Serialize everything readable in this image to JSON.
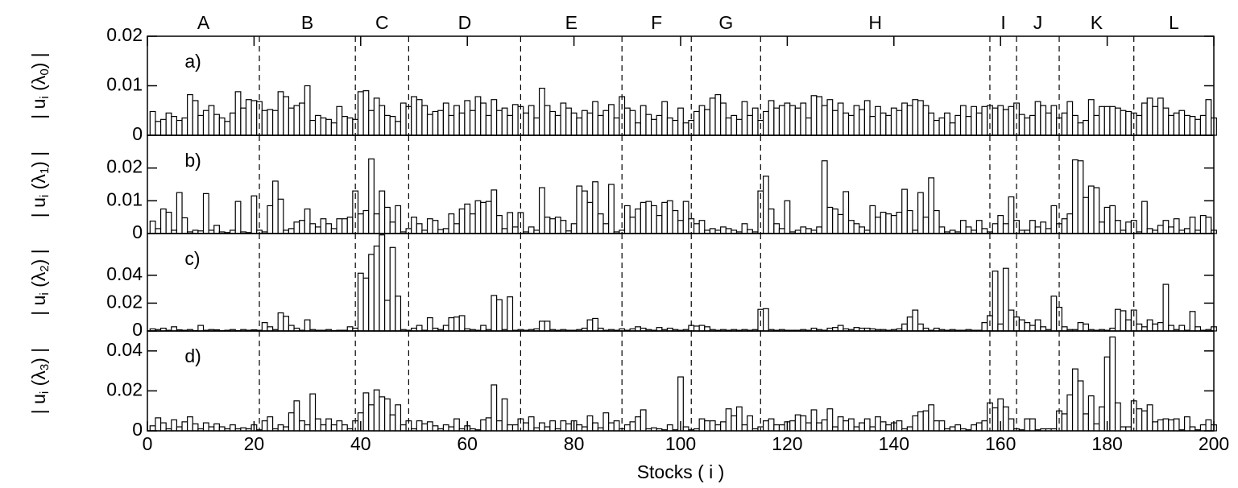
{
  "chart_data": {
    "type": "bar",
    "xlabel": "Stocks ( i )",
    "xlim": [
      0,
      200
    ],
    "xticks": [
      0,
      20,
      40,
      60,
      80,
      100,
      120,
      140,
      160,
      180,
      200
    ],
    "boundaries": [
      21,
      39,
      49,
      70,
      89,
      102,
      115,
      158,
      163,
      171,
      185
    ],
    "sectors": [
      "A",
      "B",
      "C",
      "D",
      "E",
      "F",
      "G",
      "H",
      "I",
      "J",
      "K",
      "L"
    ],
    "x": [
      1,
      2,
      3,
      4,
      5,
      6,
      7,
      8,
      9,
      10,
      11,
      12,
      13,
      14,
      15,
      16,
      17,
      18,
      19,
      20,
      21,
      22,
      23,
      24,
      25,
      26,
      27,
      28,
      29,
      30,
      31,
      32,
      33,
      34,
      35,
      36,
      37,
      38,
      39,
      40,
      41,
      42,
      43,
      44,
      45,
      46,
      47,
      48,
      49,
      50,
      51,
      52,
      53,
      54,
      55,
      56,
      57,
      58,
      59,
      60,
      61,
      62,
      63,
      64,
      65,
      66,
      67,
      68,
      69,
      70,
      71,
      72,
      73,
      74,
      75,
      76,
      77,
      78,
      79,
      80,
      81,
      82,
      83,
      84,
      85,
      86,
      87,
      88,
      89,
      90,
      91,
      92,
      93,
      94,
      95,
      96,
      97,
      98,
      99,
      100,
      101,
      102,
      103,
      104,
      105,
      106,
      107,
      108,
      109,
      110,
      111,
      112,
      113,
      114,
      115,
      116,
      117,
      118,
      119,
      120,
      121,
      122,
      123,
      124,
      125,
      126,
      127,
      128,
      129,
      130,
      131,
      132,
      133,
      134,
      135,
      136,
      137,
      138,
      139,
      140,
      141,
      142,
      143,
      144,
      145,
      146,
      147,
      148,
      149,
      150,
      151,
      152,
      153,
      154,
      155,
      156,
      157,
      158,
      159,
      160,
      161,
      162,
      163,
      164,
      165,
      166,
      167,
      168,
      169,
      170,
      171,
      172,
      173,
      174,
      175,
      176,
      177,
      178,
      179,
      180,
      181,
      182,
      183,
      184,
      185,
      186,
      187,
      188,
      189,
      190,
      191,
      192,
      193,
      194,
      195,
      196,
      197,
      198,
      199,
      200
    ],
    "panels": [
      {
        "label": "a)",
        "ylabel": [
          "| u",
          "i",
          " (λ",
          "0",
          ") |"
        ],
        "ylim": [
          0,
          0.02
        ],
        "yticks": [
          0,
          0.01,
          0.02
        ],
        "values": [
          0.0048,
          0.0028,
          0.0032,
          0.0045,
          0.0038,
          0.003,
          0.0035,
          0.0082,
          0.007,
          0.004,
          0.005,
          0.006,
          0.0042,
          0.0035,
          0.0028,
          0.0045,
          0.0088,
          0.0055,
          0.0072,
          0.007,
          0.0068,
          0.005,
          0.0052,
          0.005,
          0.0088,
          0.0078,
          0.0055,
          0.006,
          0.0065,
          0.01,
          0.003,
          0.004,
          0.0035,
          0.0032,
          0.0025,
          0.0058,
          0.0038,
          0.0035,
          0.0032,
          0.0088,
          0.009,
          0.005,
          0.0075,
          0.006,
          0.004,
          0.0038,
          0.0028,
          0.0065,
          0.0058,
          0.0078,
          0.0072,
          0.006,
          0.0042,
          0.0048,
          0.005,
          0.0065,
          0.004,
          0.006,
          0.0045,
          0.007,
          0.005,
          0.0078,
          0.0065,
          0.004,
          0.0072,
          0.005,
          0.0055,
          0.004,
          0.0062,
          0.0058,
          0.0045,
          0.006,
          0.0035,
          0.0095,
          0.006,
          0.0048,
          0.004,
          0.0065,
          0.0055,
          0.0045,
          0.0035,
          0.005,
          0.0045,
          0.0068,
          0.004,
          0.005,
          0.0062,
          0.0035,
          0.0078,
          0.0055,
          0.005,
          0.0025,
          0.006,
          0.0042,
          0.0032,
          0.004,
          0.0068,
          0.0035,
          0.003,
          0.0055,
          0.0025,
          0.003,
          0.0048,
          0.006,
          0.0052,
          0.0075,
          0.0082,
          0.0065,
          0.0035,
          0.004,
          0.0032,
          0.0068,
          0.004,
          0.0055,
          0.003,
          0.0048,
          0.007,
          0.0055,
          0.006,
          0.0065,
          0.006,
          0.0055,
          0.0065,
          0.0035,
          0.008,
          0.0078,
          0.006,
          0.0072,
          0.005,
          0.0065,
          0.0045,
          0.004,
          0.006,
          0.0052,
          0.007,
          0.0038,
          0.0058,
          0.0045,
          0.004,
          0.0055,
          0.005,
          0.0065,
          0.006,
          0.0072,
          0.007,
          0.006,
          0.0045,
          0.003,
          0.0035,
          0.0045,
          0.0025,
          0.004,
          0.006,
          0.0038,
          0.0058,
          0.0045,
          0.0058,
          0.006,
          0.0055,
          0.006,
          0.0052,
          0.0058,
          0.0065,
          0.0042,
          0.0035,
          0.004,
          0.0068,
          0.006,
          0.0045,
          0.006,
          0.0035,
          0.0045,
          0.0068,
          0.004,
          0.0025,
          0.003,
          0.0072,
          0.004,
          0.0058,
          0.0058,
          0.0058,
          0.0055,
          0.005,
          0.0048,
          0.0045,
          0.004,
          0.0065,
          0.0075,
          0.0058,
          0.0075,
          0.0055,
          0.004,
          0.0045,
          0.005,
          0.004,
          0.0038,
          0.0032,
          0.004,
          0.0072,
          0.0035
        ]
      },
      {
        "label": "b)",
        "ylabel": [
          "| u",
          "i",
          " (λ",
          "1",
          ") |"
        ],
        "ylim": [
          0,
          0.03
        ],
        "yticks": [
          0,
          0.01,
          0.02
        ],
        "values": [
          0.0038,
          0.0015,
          0.0075,
          0.0065,
          0.001,
          0.0125,
          0.0048,
          0.0005,
          0.001,
          0.0008,
          0.0122,
          0.001,
          0.0025,
          0.0005,
          0.0003,
          0.001,
          0.0098,
          0.0005,
          0.0003,
          0.0115,
          0.001,
          0.0005,
          0.0085,
          0.016,
          0.0105,
          0.001,
          0.0015,
          0.0035,
          0.004,
          0.0075,
          0.003,
          0.002,
          0.0045,
          0.003,
          0.0015,
          0.0045,
          0.0045,
          0.005,
          0.013,
          0.006,
          0.007,
          0.0228,
          0.006,
          0.013,
          0.008,
          0.0035,
          0.0085,
          0.0005,
          0.0015,
          0.005,
          0.003,
          0.001,
          0.0045,
          0.004,
          0.0012,
          0.0015,
          0.006,
          0.003,
          0.0075,
          0.009,
          0.006,
          0.01,
          0.0095,
          0.0098,
          0.0133,
          0.0055,
          0.0015,
          0.0064,
          0.002,
          0.0064,
          0.0005,
          0.002,
          0.001,
          0.014,
          0.005,
          0.0045,
          0.005,
          0.004,
          0.0008,
          0.003,
          0.0145,
          0.013,
          0.0095,
          0.0158,
          0.006,
          0.003,
          0.015,
          0.0005,
          0.001,
          0.0085,
          0.005,
          0.0075,
          0.0095,
          0.0098,
          0.0085,
          0.0055,
          0.0095,
          0.01,
          0.007,
          0.004,
          0.0098,
          0.0045,
          0.003,
          0.004,
          0.001,
          0.0015,
          0.001,
          0.002,
          0.0015,
          0.001,
          0.0005,
          0.003,
          0.0012,
          0.0005,
          0.013,
          0.0175,
          0.0075,
          0.003,
          0.0015,
          0.01,
          0.0005,
          0.001,
          0.002,
          0.0015,
          0.001,
          0.002,
          0.0222,
          0.008,
          0.0075,
          0.0058,
          0.0128,
          0.004,
          0.003,
          0.002,
          0.001,
          0.0085,
          0.005,
          0.0065,
          0.006,
          0.0055,
          0.0065,
          0.0135,
          0.007,
          0.001,
          0.0125,
          0.005,
          0.017,
          0.007,
          0.002,
          0.0005,
          0.001,
          0.0005,
          0.004,
          0.002,
          0.001,
          0.004,
          0.0015,
          0.0005,
          0.003,
          0.0055,
          0.003,
          0.0112,
          0.004,
          0.001,
          0.001,
          0.004,
          0.002,
          0.0035,
          0.0015,
          0.0085,
          0.003,
          0.0045,
          0.006,
          0.0225,
          0.0222,
          0.011,
          0.0145,
          0.014,
          0.0035,
          0.008,
          0.0085,
          0.004,
          0.001,
          0.0035,
          0.004,
          0.0005,
          0.0098,
          0.0015,
          0.001,
          0.0025,
          0.004,
          0.002,
          0.0045,
          0.001,
          0.0015,
          0.005,
          0.001,
          0.0055,
          0.005,
          0.001
        ]
      },
      {
        "label": "c)",
        "ylabel": [
          "| u",
          "i",
          " (λ",
          "2",
          ") |"
        ],
        "ylim": [
          0,
          0.07
        ],
        "yticks": [
          0,
          0.02,
          0.04
        ],
        "values": [
          0.0015,
          0.001,
          0.002,
          0.0005,
          0.003,
          0.0008,
          0.0005,
          0.001,
          0.0003,
          0.004,
          0.0005,
          0.001,
          0.0008,
          0.0003,
          0.0005,
          0.001,
          0.0003,
          0.001,
          0.0005,
          0.0008,
          0.0005,
          0.006,
          0.003,
          0.001,
          0.013,
          0.0105,
          0.004,
          0.002,
          0.0005,
          0.008,
          0.001,
          0.0005,
          0.0005,
          0.001,
          0.0003,
          0.0005,
          0.0005,
          0.003,
          0.002,
          0.0415,
          0.038,
          0.055,
          0.061,
          0.069,
          0.022,
          0.06,
          0.025,
          0.001,
          0.0005,
          0.002,
          0.004,
          0.0005,
          0.0095,
          0.002,
          0.001,
          0.004,
          0.0095,
          0.01,
          0.011,
          0.0015,
          0.001,
          0.0005,
          0.004,
          0.001,
          0.0255,
          0.0225,
          0.001,
          0.0245,
          0.0005,
          0.001,
          0.0005,
          0.001,
          0.0015,
          0.007,
          0.007,
          0.001,
          0.0005,
          0.001,
          0.0005,
          0.0005,
          0.001,
          0.002,
          0.008,
          0.009,
          0.002,
          0.0005,
          0.001,
          0.0005,
          0.0015,
          0.0005,
          0.0015,
          0.003,
          0.002,
          0.001,
          0.0005,
          0.0025,
          0.001,
          0.002,
          0.001,
          0.0005,
          0.001,
          0.004,
          0.0035,
          0.004,
          0.003,
          0.001,
          0.0005,
          0.001,
          0.0005,
          0.001,
          0.0005,
          0.001,
          0.0005,
          0.001,
          0.0155,
          0.016,
          0.001,
          0.0005,
          0.001,
          0.0005,
          0.0005,
          0.0005,
          0.001,
          0.0005,
          0.002,
          0.001,
          0.0005,
          0.002,
          0.0025,
          0.004,
          0.0015,
          0.001,
          0.0025,
          0.002,
          0.002,
          0.0015,
          0.001,
          0.001,
          0.0005,
          0.001,
          0.0015,
          0.005,
          0.01,
          0.015,
          0.005,
          0.002,
          0.0005,
          0.002,
          0.001,
          0.0005,
          0.001,
          0.0005,
          0.0005,
          0.001,
          0.0005,
          0.0005,
          0.006,
          0.011,
          0.043,
          0.005,
          0.045,
          0.015,
          0.01,
          0.008,
          0.006,
          0.004,
          0.008,
          0.003,
          0.001,
          0.025,
          0.017,
          0.003,
          0.001,
          0.001,
          0.006,
          0.005,
          0.001,
          0.0005,
          0.001,
          0.0005,
          0.002,
          0.0155,
          0.0145,
          0.008,
          0.015,
          0.005,
          0.003,
          0.008,
          0.005,
          0.006,
          0.0335,
          0.004,
          0.001,
          0.004,
          0.0005,
          0.014,
          0.003,
          0.0005,
          0.001,
          0.003
        ]
      },
      {
        "label": "d)",
        "ylabel": [
          "| u",
          "i",
          " (λ",
          "3",
          ") |"
        ],
        "ylim": [
          0,
          0.05
        ],
        "yticks": [
          0,
          0.02,
          0.04
        ],
        "values": [
          0.0025,
          0.0065,
          0.004,
          0.001,
          0.0055,
          0.002,
          0.0045,
          0.007,
          0.0035,
          0.001,
          0.004,
          0.002,
          0.0035,
          0.002,
          0.001,
          0.003,
          0.001,
          0.0015,
          0.001,
          0.003,
          0.0005,
          0.005,
          0.007,
          0.001,
          0.003,
          0.002,
          0.009,
          0.015,
          0.005,
          0.003,
          0.0185,
          0.006,
          0.003,
          0.006,
          0.003,
          0.005,
          0.003,
          0.001,
          0.005,
          0.009,
          0.019,
          0.013,
          0.0205,
          0.017,
          0.016,
          0.008,
          0.013,
          0.003,
          0.005,
          0.001,
          0.005,
          0.0035,
          0.0045,
          0.0025,
          0.001,
          0.003,
          0.002,
          0.006,
          0.001,
          0.0025,
          0.001,
          0.0005,
          0.0055,
          0.0065,
          0.023,
          0.005,
          0.016,
          0.003,
          0.003,
          0.006,
          0.004,
          0.007,
          0.0015,
          0.004,
          0.002,
          0.005,
          0.001,
          0.005,
          0.0035,
          0.005,
          0.003,
          0.002,
          0.0075,
          0.004,
          0.0015,
          0.009,
          0.004,
          0.005,
          0.001,
          0.003,
          0.0045,
          0.007,
          0.0105,
          0.001,
          0.0015,
          0.001,
          0.0005,
          0.003,
          0.0005,
          0.027,
          0.002,
          0.0005,
          0.001,
          0.006,
          0.005,
          0.005,
          0.003,
          0.0045,
          0.011,
          0.0075,
          0.012,
          0.003,
          0.0075,
          0.001,
          0.002,
          0.005,
          0.006,
          0.003,
          0.003,
          0.0045,
          0.005,
          0.008,
          0.0075,
          0.004,
          0.0105,
          0.004,
          0.0055,
          0.011,
          0.002,
          0.007,
          0.005,
          0.006,
          0.002,
          0.004,
          0.006,
          0.002,
          0.007,
          0.0045,
          0.003,
          0.004,
          0.005,
          0.001,
          0.002,
          0.0075,
          0.0095,
          0.01,
          0.013,
          0.005,
          0.005,
          0.001,
          0.002,
          0.003,
          0.001,
          0.0005,
          0.003,
          0.004,
          0.005,
          0.014,
          0.0115,
          0.016,
          0.012,
          0.006,
          0.001,
          0.0005,
          0.006,
          0.006,
          0.0005,
          0.001,
          0.001,
          0.001,
          0.01,
          0.0085,
          0.018,
          0.031,
          0.025,
          0.0085,
          0.0175,
          0.0035,
          0.012,
          0.037,
          0.047,
          0.014,
          0.002,
          0.002,
          0.015,
          0.011,
          0.01,
          0.013,
          0.0045,
          0.0055,
          0.006,
          0.0055,
          0.006,
          0.0005,
          0.007,
          0.002,
          0.0005,
          0.003,
          0.0055,
          0.003
        ]
      }
    ]
  }
}
